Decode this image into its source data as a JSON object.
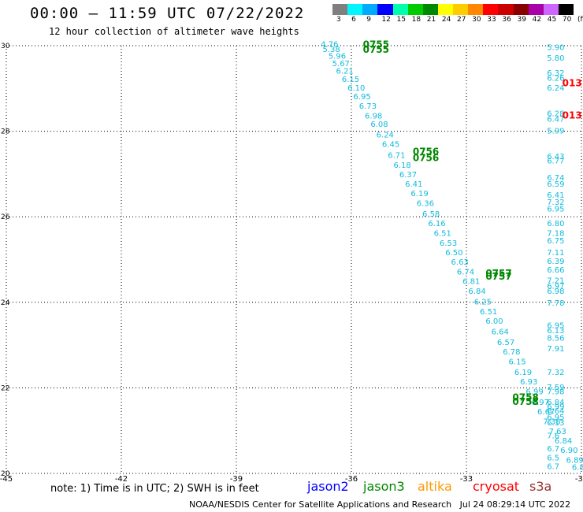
{
  "header": {
    "title": "00:00 – 11:59 UTC 07/22/2022",
    "subtitle": "12 hour collection of altimeter wave heights"
  },
  "colorbar": {
    "labels": [
      "3",
      "6",
      "9",
      "12",
      "15",
      "18",
      "21",
      "24",
      "27",
      "30",
      "33",
      "36",
      "39",
      "42",
      "45",
      "70",
      "(ft)"
    ],
    "colors": [
      "#7f7f7f",
      "#00f5ff",
      "#00aaff",
      "#0000ff",
      "#00ffaa",
      "#00cc00",
      "#008800",
      "#ffff00",
      "#ffcc00",
      "#ff8800",
      "#ff0000",
      "#cc0000",
      "#880000",
      "#aa00aa",
      "#cc66ff",
      "#000000"
    ]
  },
  "legend": {
    "note": "note: 1) Time is in UTC; 2) SWH is in feet",
    "satellites": [
      {
        "name": "jason2",
        "color": "#0000ff"
      },
      {
        "name": "jason3",
        "color": "#008800"
      },
      {
        "name": "altika",
        "color": "#ff9900"
      },
      {
        "name": "cryosat",
        "color": "#ff0000"
      },
      {
        "name": "s3a",
        "color": "#993333"
      }
    ]
  },
  "footer": "NOAA/NESDIS Center for Satellite Applications and Research   Jul 24 08:29:14 UTC 2022",
  "chart_data": {
    "type": "scatter",
    "xlim": [
      -45,
      -30
    ],
    "ylim": [
      20,
      30
    ],
    "x_ticks": [
      "-45",
      "-42",
      "-39",
      "-36",
      "-33",
      "-30"
    ],
    "y_ticks": [
      "20",
      "22",
      "24",
      "26",
      "28",
      "30"
    ],
    "grid": true,
    "point_color": "#11bbdd",
    "track_labels": [
      {
        "text": "0755",
        "x": -35.7,
        "y": 29.95,
        "color": "#008800"
      },
      {
        "text": "0755",
        "x": -35.7,
        "y": 29.83,
        "color": "#008800"
      },
      {
        "text": "0756",
        "x": -34.4,
        "y": 27.45,
        "color": "#008800"
      },
      {
        "text": "0756",
        "x": -34.4,
        "y": 27.3,
        "color": "#008800"
      },
      {
        "text": "0757",
        "x": -32.5,
        "y": 24.6,
        "color": "#008800"
      },
      {
        "text": "0757",
        "x": -32.5,
        "y": 24.53,
        "color": "#008800"
      },
      {
        "text": "0758",
        "x": -31.8,
        "y": 21.7,
        "color": "#008800"
      },
      {
        "text": "0758",
        "x": -31.8,
        "y": 21.6,
        "color": "#008800"
      },
      {
        "text": "013",
        "x": -30.5,
        "y": 29.05,
        "color": "#ff0000"
      },
      {
        "text": "013",
        "x": -30.5,
        "y": 28.3,
        "color": "#ff0000"
      }
    ],
    "series": [
      {
        "values": [
          {
            "x": -36.8,
            "y": 29.97,
            "v": "4.76"
          },
          {
            "x": -36.75,
            "y": 29.85,
            "v": "5.38"
          },
          {
            "x": -36.6,
            "y": 29.7,
            "v": "5.96"
          },
          {
            "x": -36.5,
            "y": 29.52,
            "v": "5.67"
          },
          {
            "x": -36.4,
            "y": 29.35,
            "v": "6.21"
          },
          {
            "x": -36.25,
            "y": 29.15,
            "v": "6.15"
          },
          {
            "x": -36.1,
            "y": 28.95,
            "v": "6.10"
          },
          {
            "x": -35.95,
            "y": 28.75,
            "v": "6.95"
          },
          {
            "x": -35.8,
            "y": 28.53,
            "v": "6.73"
          },
          {
            "x": -35.65,
            "y": 28.3,
            "v": "6.98"
          },
          {
            "x": -35.5,
            "y": 28.1,
            "v": "6.08"
          },
          {
            "x": -35.35,
            "y": 27.85,
            "v": "6.24"
          },
          {
            "x": -35.2,
            "y": 27.63,
            "v": "6.45"
          },
          {
            "x": -35.05,
            "y": 27.38,
            "v": "6.71"
          },
          {
            "x": -34.9,
            "y": 27.15,
            "v": "6.18"
          },
          {
            "x": -34.75,
            "y": 26.92,
            "v": "6.37"
          },
          {
            "x": -34.6,
            "y": 26.7,
            "v": "6.41"
          },
          {
            "x": -34.45,
            "y": 26.48,
            "v": "6.19"
          },
          {
            "x": -34.3,
            "y": 26.25,
            "v": "6.36"
          },
          {
            "x": -34.15,
            "y": 26.0,
            "v": "6.58"
          },
          {
            "x": -34.0,
            "y": 25.78,
            "v": "6.16"
          },
          {
            "x": -33.85,
            "y": 25.55,
            "v": "6.51"
          },
          {
            "x": -33.7,
            "y": 25.32,
            "v": "6.53"
          },
          {
            "x": -33.55,
            "y": 25.1,
            "v": "6.50"
          },
          {
            "x": -33.4,
            "y": 24.88,
            "v": "6.63"
          },
          {
            "x": -33.25,
            "y": 24.65,
            "v": "6.74"
          },
          {
            "x": -33.1,
            "y": 24.43,
            "v": "6.81"
          },
          {
            "x": -32.95,
            "y": 24.2,
            "v": "6.84"
          },
          {
            "x": -32.8,
            "y": 23.95,
            "v": "6.25"
          },
          {
            "x": -32.65,
            "y": 23.72,
            "v": "6.51"
          },
          {
            "x": -32.5,
            "y": 23.5,
            "v": "6.00"
          },
          {
            "x": -32.35,
            "y": 23.25,
            "v": "6.64"
          },
          {
            "x": -32.2,
            "y": 23.0,
            "v": "6.57"
          },
          {
            "x": -32.05,
            "y": 22.78,
            "v": "6.78"
          },
          {
            "x": -31.9,
            "y": 22.55,
            "v": "6.15"
          },
          {
            "x": -31.75,
            "y": 22.3,
            "v": "6.19"
          },
          {
            "x": -31.6,
            "y": 22.08,
            "v": "6.93"
          },
          {
            "x": -31.45,
            "y": 21.85,
            "v": "6.99"
          },
          {
            "x": -31.3,
            "y": 21.6,
            "v": "6.97"
          },
          {
            "x": -31.15,
            "y": 21.38,
            "v": "6.67"
          },
          {
            "x": -31.0,
            "y": 21.15,
            "v": "7.38"
          },
          {
            "x": -30.85,
            "y": 20.92,
            "v": "7.63"
          },
          {
            "x": -30.7,
            "y": 20.7,
            "v": "6.84"
          },
          {
            "x": -30.55,
            "y": 20.48,
            "v": "6.90"
          },
          {
            "x": -30.4,
            "y": 20.25,
            "v": "6.89"
          },
          {
            "x": -30.25,
            "y": 20.08,
            "v": "6.81"
          }
        ]
      },
      {
        "values": [
          {
            "x": -30.9,
            "y": 29.9,
            "v": "5.90"
          },
          {
            "x": -30.9,
            "y": 29.65,
            "v": "5.80"
          },
          {
            "x": -30.9,
            "y": 29.3,
            "v": "6.32"
          },
          {
            "x": -30.9,
            "y": 29.18,
            "v": "6.26"
          },
          {
            "x": -30.9,
            "y": 28.95,
            "v": "6.24"
          },
          {
            "x": -30.9,
            "y": 28.35,
            "v": "6.28"
          },
          {
            "x": -30.9,
            "y": 28.22,
            "v": "6.47"
          },
          {
            "x": -30.9,
            "y": 27.95,
            "v": "5.99"
          },
          {
            "x": -30.9,
            "y": 27.35,
            "v": "6.43"
          },
          {
            "x": -30.9,
            "y": 27.25,
            "v": "6.77"
          },
          {
            "x": -30.9,
            "y": 26.85,
            "v": "6.74"
          },
          {
            "x": -30.9,
            "y": 26.7,
            "v": "6.59"
          },
          {
            "x": -30.9,
            "y": 26.45,
            "v": "6.41"
          },
          {
            "x": -30.9,
            "y": 26.28,
            "v": "7.32"
          },
          {
            "x": -30.9,
            "y": 26.12,
            "v": "6.95"
          },
          {
            "x": -30.9,
            "y": 25.78,
            "v": "6.80"
          },
          {
            "x": -30.9,
            "y": 25.55,
            "v": "7.18"
          },
          {
            "x": -30.9,
            "y": 25.38,
            "v": "6.75"
          },
          {
            "x": -30.9,
            "y": 25.1,
            "v": "7.11"
          },
          {
            "x": -30.9,
            "y": 24.9,
            "v": "6.39"
          },
          {
            "x": -30.9,
            "y": 24.7,
            "v": "6.66"
          },
          {
            "x": -30.9,
            "y": 24.45,
            "v": "7.21"
          },
          {
            "x": -30.9,
            "y": 24.32,
            "v": "6.97"
          },
          {
            "x": -30.9,
            "y": 24.2,
            "v": "6.98"
          },
          {
            "x": -30.9,
            "y": 23.92,
            "v": "7.78"
          },
          {
            "x": -30.9,
            "y": 23.4,
            "v": "6.95"
          },
          {
            "x": -30.9,
            "y": 23.28,
            "v": "6.13"
          },
          {
            "x": -30.9,
            "y": 23.1,
            "v": "8.56"
          },
          {
            "x": -30.9,
            "y": 22.85,
            "v": "7.91"
          },
          {
            "x": -30.9,
            "y": 22.3,
            "v": "7.32"
          },
          {
            "x": -30.9,
            "y": 21.95,
            "v": "7.59"
          },
          {
            "x": -30.9,
            "y": 21.85,
            "v": "7.98"
          },
          {
            "x": -30.9,
            "y": 21.6,
            "v": "6.84"
          },
          {
            "x": -30.9,
            "y": 21.5,
            "v": "6.99"
          },
          {
            "x": -30.9,
            "y": 21.4,
            "v": "6.64"
          },
          {
            "x": -30.9,
            "y": 21.25,
            "v": "6.95"
          },
          {
            "x": -30.9,
            "y": 21.12,
            "v": "6.13"
          },
          {
            "x": -30.9,
            "y": 20.82,
            "v": "7.6"
          },
          {
            "x": -30.9,
            "y": 20.52,
            "v": "6.7"
          },
          {
            "x": -30.9,
            "y": 20.3,
            "v": "6.5"
          },
          {
            "x": -30.9,
            "y": 20.1,
            "v": "6.7"
          }
        ]
      }
    ]
  }
}
